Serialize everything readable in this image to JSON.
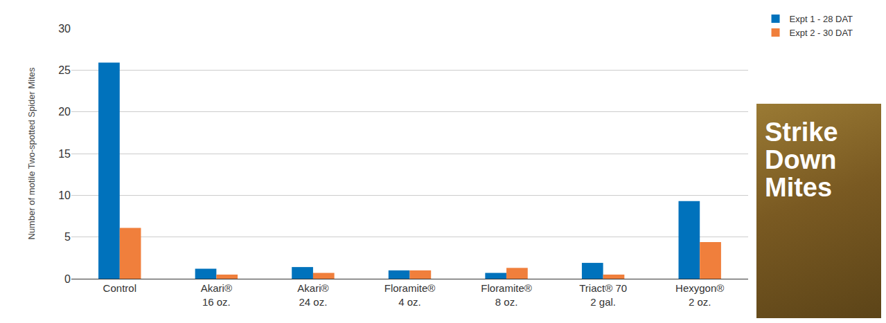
{
  "chart_data": {
    "type": "bar",
    "categories": [
      "Control",
      "Akari® 16 oz.",
      "Akari® 24 oz.",
      "Floramite® 4 oz.",
      "Floramite® 8 oz.",
      "Triact® 70 2 gal.",
      "Hexygon® 2 oz."
    ],
    "series": [
      {
        "name": "Expt 1 - 28 DAT",
        "color": "#0072bc",
        "values": [
          25.9,
          1.2,
          1.4,
          1.0,
          0.7,
          1.9,
          9.3
        ]
      },
      {
        "name": "Expt 2 - 30 DAT",
        "color": "#f07f3c",
        "values": [
          6.1,
          0.5,
          0.7,
          1.0,
          1.3,
          0.5,
          4.4
        ]
      }
    ],
    "y_label": "Number of motile Two-spotted Spider Mites",
    "ylim": [
      0,
      30
    ],
    "yticks": [
      0,
      5,
      10,
      15,
      20,
      25,
      30
    ],
    "grid": true,
    "legend": "top right",
    "annotations": [
      "Strike Down Mites"
    ]
  }
}
